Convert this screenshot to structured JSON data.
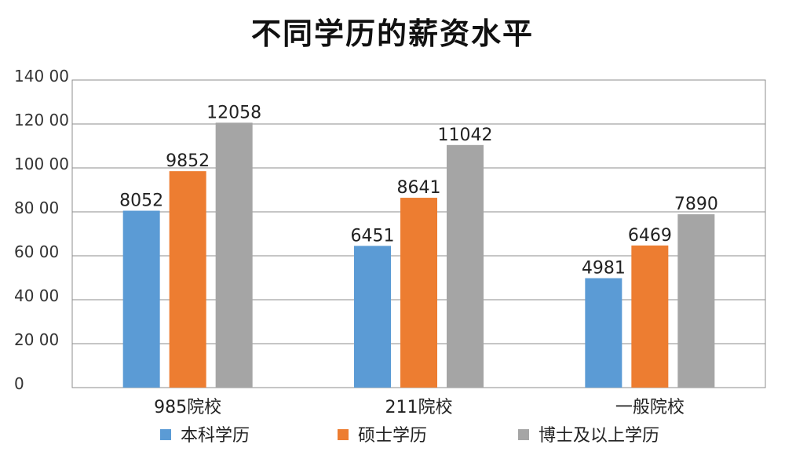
{
  "chart_data": {
    "type": "bar",
    "title": "不同学历的薪资水平",
    "categories": [
      "985院校",
      "211院校",
      "一般院校"
    ],
    "series": [
      {
        "name": "本科学历",
        "color": "#5B9BD5",
        "values": [
          8052,
          6451,
          4981
        ]
      },
      {
        "name": "硕士学历",
        "color": "#ED7D31",
        "values": [
          9852,
          8641,
          6469
        ]
      },
      {
        "name": "博士及以上学历",
        "color": "#A5A5A5",
        "values": [
          12058,
          11042,
          7890
        ]
      }
    ],
    "data_labels": [
      [
        "8052",
        "6451",
        "4981"
      ],
      [
        "9852",
        "8641",
        "6469"
      ],
      [
        "12058",
        "11042",
        "7890"
      ]
    ],
    "ylim": [
      0,
      14000
    ],
    "y_ticks": [
      0,
      2000,
      4000,
      6000,
      8000,
      10000,
      12000,
      14000
    ],
    "y_tick_labels": [
      "0",
      "20 00",
      "40 00",
      "60 00",
      "80 00",
      "100 00",
      "120 00",
      "140 00"
    ],
    "grid": true,
    "legend_position": "bottom",
    "xlabel": "",
    "ylabel": ""
  }
}
